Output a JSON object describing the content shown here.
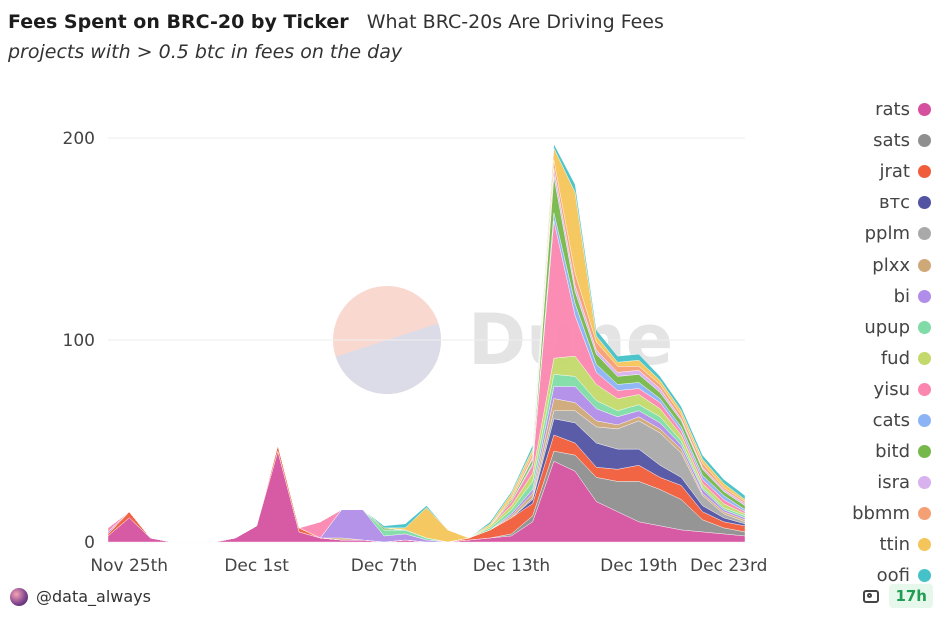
{
  "header": {
    "title": "Fees Spent on BRC-20 by Ticker",
    "subtitle_inline": "What BRC-20s Are Driving Fees",
    "description": "projects with > 0.5 btc in fees on the day"
  },
  "watermark": {
    "text": "Dune"
  },
  "footer": {
    "author": "@data_always",
    "age_badge": "17h"
  },
  "icons": {
    "camera": "camera-icon",
    "avatar": "avatar-icon"
  },
  "chart_data": {
    "type": "area",
    "stacked": true,
    "x": [
      "Nov 24",
      "Nov 25",
      "Nov 26",
      "Nov 27",
      "Nov 28",
      "Nov 29",
      "Nov 30",
      "Dec 1",
      "Dec 2",
      "Dec 3",
      "Dec 4",
      "Dec 5",
      "Dec 6",
      "Dec 7",
      "Dec 8",
      "Dec 9",
      "Dec 10",
      "Dec 11",
      "Dec 12",
      "Dec 13",
      "Dec 14",
      "Dec 15",
      "Dec 16",
      "Dec 17",
      "Dec 18",
      "Dec 19",
      "Dec 20",
      "Dec 21",
      "Dec 22",
      "Dec 23",
      "Dec 24"
    ],
    "x_ticks": [
      "Nov 25th",
      "Dec 1st",
      "Dec 7th",
      "Dec 13th",
      "Dec 19th",
      "Dec 23rd"
    ],
    "y_ticks": [
      0,
      100,
      200
    ],
    "ylim": [
      0,
      220
    ],
    "series": [
      {
        "name": "rats",
        "color": "#d5519f",
        "values": [
          3,
          12,
          2,
          0,
          0,
          0,
          2,
          8,
          45,
          5,
          2,
          1,
          1,
          0,
          1,
          0,
          0,
          1,
          2,
          3,
          10,
          40,
          35,
          20,
          15,
          10,
          8,
          6,
          5,
          4,
          3
        ]
      },
      {
        "name": "sats",
        "color": "#8f8f8f",
        "values": [
          0,
          0,
          0,
          0,
          0,
          0,
          0,
          0,
          0,
          0,
          0,
          0,
          0,
          0,
          0,
          0,
          0,
          0,
          0,
          1,
          3,
          5,
          8,
          12,
          15,
          20,
          18,
          15,
          6,
          3,
          2
        ]
      },
      {
        "name": "jrat",
        "color": "#f05d3b",
        "values": [
          1,
          3,
          0,
          0,
          0,
          0,
          0,
          0,
          3,
          2,
          0,
          0,
          0,
          0,
          0,
          0,
          0,
          1,
          4,
          8,
          6,
          8,
          6,
          5,
          6,
          8,
          6,
          7,
          4,
          3,
          3
        ]
      },
      {
        "name": "втс",
        "color": "#5253a3",
        "values": [
          0,
          0,
          0,
          0,
          0,
          0,
          0,
          0,
          0,
          0,
          0,
          0,
          0,
          0,
          0,
          0,
          0,
          0,
          0,
          0,
          2,
          8,
          10,
          12,
          10,
          8,
          6,
          4,
          3,
          2,
          1
        ]
      },
      {
        "name": "pplm",
        "color": "#a9a9a9",
        "values": [
          0,
          0,
          0,
          0,
          0,
          0,
          0,
          0,
          0,
          0,
          0,
          0,
          0,
          0,
          0,
          0,
          0,
          0,
          0,
          0,
          1,
          4,
          6,
          8,
          10,
          14,
          16,
          12,
          5,
          2,
          1
        ]
      },
      {
        "name": "plxx",
        "color": "#cfa878",
        "values": [
          0,
          0,
          0,
          0,
          0,
          0,
          0,
          0,
          0,
          0,
          0,
          1,
          0,
          0,
          0,
          0,
          0,
          0,
          0,
          1,
          2,
          6,
          4,
          3,
          2,
          2,
          2,
          2,
          1,
          1,
          1
        ]
      },
      {
        "name": "bi",
        "color": "#b08de8",
        "values": [
          1,
          0,
          0,
          0,
          0,
          0,
          0,
          0,
          0,
          0,
          0,
          14,
          15,
          3,
          3,
          1,
          0,
          0,
          0,
          1,
          2,
          6,
          8,
          6,
          4,
          3,
          3,
          2,
          2,
          1,
          1
        ]
      },
      {
        "name": "upup",
        "color": "#7fdca6",
        "values": [
          0,
          0,
          0,
          0,
          0,
          0,
          0,
          0,
          0,
          0,
          0,
          0,
          0,
          3,
          2,
          1,
          0,
          0,
          1,
          2,
          4,
          6,
          5,
          4,
          3,
          3,
          3,
          2,
          1,
          1,
          1
        ]
      },
      {
        "name": "fud",
        "color": "#c4d96b",
        "values": [
          0,
          0,
          0,
          0,
          0,
          0,
          0,
          0,
          0,
          0,
          0,
          0,
          0,
          0,
          0,
          0,
          0,
          0,
          1,
          2,
          4,
          8,
          10,
          8,
          6,
          5,
          4,
          3,
          2,
          2,
          1
        ]
      },
      {
        "name": "yisu",
        "color": "#fb87b0",
        "values": [
          2,
          0,
          0,
          0,
          0,
          0,
          0,
          0,
          0,
          0,
          8,
          0,
          0,
          0,
          0,
          0,
          0,
          0,
          0,
          2,
          4,
          68,
          20,
          6,
          4,
          3,
          3,
          2,
          2,
          2,
          1
        ]
      },
      {
        "name": "cats",
        "color": "#8cb3f5",
        "values": [
          0,
          0,
          0,
          0,
          0,
          0,
          0,
          0,
          0,
          0,
          0,
          0,
          0,
          0,
          0,
          0,
          0,
          0,
          0,
          0,
          1,
          4,
          6,
          4,
          3,
          3,
          2,
          2,
          2,
          2,
          1
        ]
      },
      {
        "name": "bitd",
        "color": "#77b84a",
        "values": [
          0,
          0,
          0,
          0,
          0,
          0,
          0,
          0,
          0,
          0,
          0,
          0,
          0,
          1,
          0,
          0,
          0,
          0,
          0,
          1,
          2,
          18,
          6,
          5,
          4,
          4,
          3,
          3,
          3,
          2,
          2
        ]
      },
      {
        "name": "isra",
        "color": "#d8b1ef",
        "values": [
          0,
          0,
          0,
          0,
          0,
          0,
          0,
          0,
          0,
          0,
          0,
          0,
          0,
          0,
          0,
          0,
          0,
          0,
          0,
          0,
          1,
          4,
          3,
          2,
          2,
          2,
          2,
          1,
          1,
          1,
          1
        ]
      },
      {
        "name": "bbmm",
        "color": "#f5a074",
        "values": [
          0,
          0,
          0,
          0,
          0,
          0,
          0,
          0,
          0,
          0,
          0,
          0,
          0,
          0,
          0,
          0,
          0,
          0,
          0,
          1,
          2,
          4,
          6,
          4,
          3,
          2,
          2,
          2,
          2,
          1,
          1
        ]
      },
      {
        "name": "ttin",
        "color": "#f4c55a",
        "values": [
          0,
          0,
          0,
          0,
          0,
          0,
          0,
          0,
          0,
          0,
          0,
          0,
          0,
          0,
          1,
          15,
          6,
          0,
          1,
          2,
          2,
          6,
          40,
          3,
          2,
          3,
          2,
          2,
          2,
          2,
          1
        ]
      },
      {
        "name": "oofi",
        "color": "#45c2c7",
        "values": [
          0,
          0,
          0,
          0,
          0,
          0,
          0,
          0,
          0,
          0,
          0,
          0,
          0,
          1,
          2,
          1,
          0,
          0,
          1,
          1,
          2,
          2,
          4,
          3,
          3,
          3,
          2,
          2,
          2,
          2,
          2
        ]
      }
    ]
  }
}
